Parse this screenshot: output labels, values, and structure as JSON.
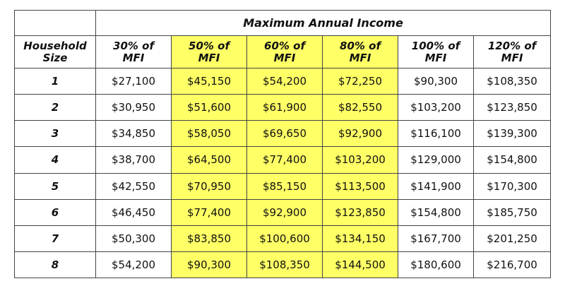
{
  "super_header": "Maximum Annual Income",
  "columns": [
    {
      "line1": "Household",
      "line2": "Size",
      "highlight": false
    },
    {
      "line1": "30% of",
      "line2": "MFI",
      "highlight": false
    },
    {
      "line1": "50% of",
      "line2": "MFI",
      "highlight": true
    },
    {
      "line1": "60% of",
      "line2": "MFI",
      "highlight": true
    },
    {
      "line1": "80% of",
      "line2": "MFI",
      "highlight": true
    },
    {
      "line1": "100% of",
      "line2": "MFI",
      "highlight": false
    },
    {
      "line1": "120% of",
      "line2": "MFI",
      "highlight": false
    }
  ],
  "highlight_color": "#ffff66",
  "rows": [
    {
      "size": "1",
      "values": [
        "$27,100",
        "$45,150",
        "$54,200",
        "$72,250",
        "$90,300",
        "$108,350"
      ]
    },
    {
      "size": "2",
      "values": [
        "$30,950",
        "$51,600",
        "$61,900",
        "$82,550",
        "$103,200",
        "$123,850"
      ]
    },
    {
      "size": "3",
      "values": [
        "$34,850",
        "$58,050",
        "$69,650",
        "$92,900",
        "$116,100",
        "$139,300"
      ]
    },
    {
      "size": "4",
      "values": [
        "$38,700",
        "$64,500",
        "$77,400",
        "$103,200",
        "$129,000",
        "$154,800"
      ]
    },
    {
      "size": "5",
      "values": [
        "$42,550",
        "$70,950",
        "$85,150",
        "$113,500",
        "$141,900",
        "$170,300"
      ]
    },
    {
      "size": "6",
      "values": [
        "$46,450",
        "$77,400",
        "$92,900",
        "$123,850",
        "$154,800",
        "$185,750"
      ]
    },
    {
      "size": "7",
      "values": [
        "$50,300",
        "$83,850",
        "$100,600",
        "$134,150",
        "$167,700",
        "$201,250"
      ]
    },
    {
      "size": "8",
      "values": [
        "$54,200",
        "$90,300",
        "$108,350",
        "$144,500",
        "$180,600",
        "$216,700"
      ]
    }
  ]
}
